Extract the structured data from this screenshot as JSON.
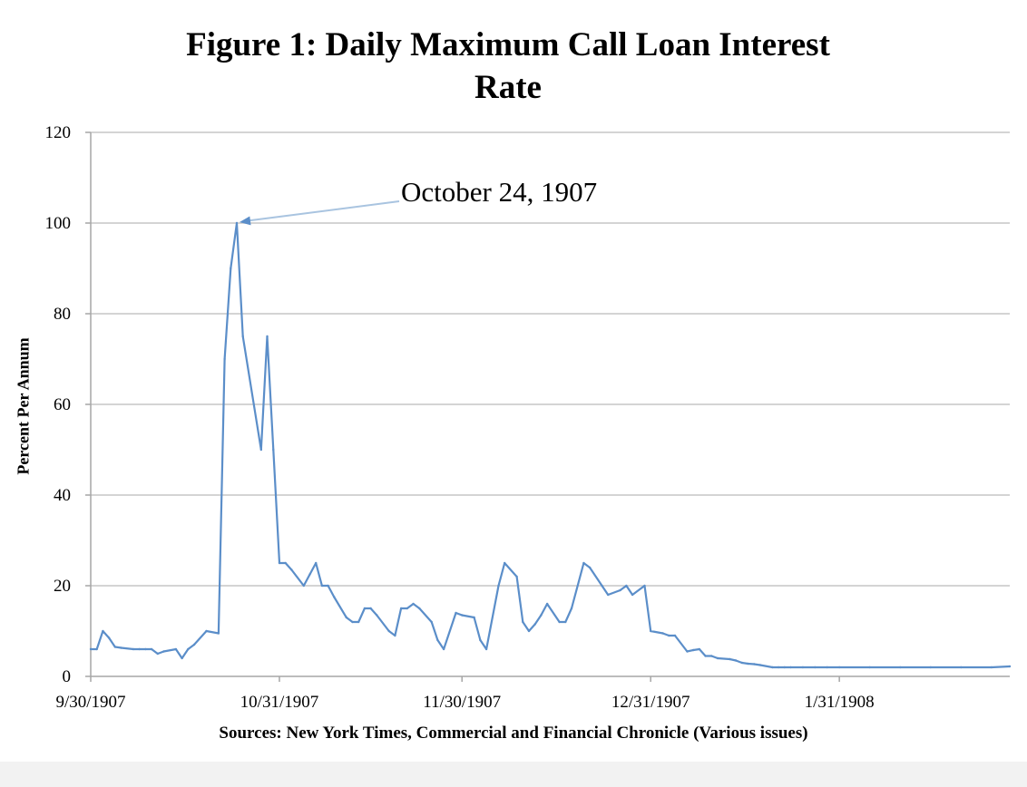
{
  "chart_data": {
    "type": "line",
    "title_line1": "Figure 1: Daily Maximum Call Loan Interest",
    "title_line2": "Rate",
    "ylabel": "Percent Per Annum",
    "xlabel": "",
    "source": "Sources: New York Times, Commercial and Financial Chronicle (Various issues)",
    "ylim": [
      0,
      120
    ],
    "yticks": [
      0,
      20,
      40,
      60,
      80,
      100,
      120
    ],
    "xlim": [
      "1907-09-30",
      "1908-02-28"
    ],
    "xticks": [
      {
        "date": "1907-09-30",
        "label": "9/30/1907"
      },
      {
        "date": "1907-10-31",
        "label": "10/31/1907"
      },
      {
        "date": "1907-11-30",
        "label": "11/30/1907"
      },
      {
        "date": "1907-12-31",
        "label": "12/31/1907"
      },
      {
        "date": "1908-01-31",
        "label": "1/31/1908"
      }
    ],
    "grid": true,
    "line_color": "#5b8ec9",
    "annotation": {
      "text": "October 24, 1907",
      "x": "1907-10-24",
      "y": 100
    },
    "series": [
      {
        "x": [
          "1907-09-30",
          "1907-10-01",
          "1907-10-02",
          "1907-10-03",
          "1907-10-04",
          "1907-10-05",
          "1907-10-07",
          "1907-10-08",
          "1907-10-09",
          "1907-10-10",
          "1907-10-11",
          "1907-10-12",
          "1907-10-14",
          "1907-10-15",
          "1907-10-16",
          "1907-10-17",
          "1907-10-19",
          "1907-10-21",
          "1907-10-22",
          "1907-10-23",
          "1907-10-24",
          "1907-10-25",
          "1907-10-28",
          "1907-10-29",
          "1907-10-30",
          "1907-10-31",
          "1907-11-01",
          "1907-11-02",
          "1907-11-04",
          "1907-11-05",
          "1907-11-06",
          "1907-11-07",
          "1907-11-08",
          "1907-11-09",
          "1907-11-11",
          "1907-11-12",
          "1907-11-13",
          "1907-11-14",
          "1907-11-15",
          "1907-11-16",
          "1907-11-18",
          "1907-11-19",
          "1907-11-20",
          "1907-11-21",
          "1907-11-22",
          "1907-11-23",
          "1907-11-25",
          "1907-11-26",
          "1907-11-27",
          "1907-11-29",
          "1907-11-30",
          "1907-12-02",
          "1907-12-03",
          "1907-12-04",
          "1907-12-06",
          "1907-12-07",
          "1907-12-09",
          "1907-12-10",
          "1907-12-11",
          "1907-12-12",
          "1907-12-13",
          "1907-12-14",
          "1907-12-16",
          "1907-12-17",
          "1907-12-18",
          "1907-12-20",
          "1907-12-21",
          "1907-12-23",
          "1907-12-24",
          "1907-12-26",
          "1907-12-27",
          "1907-12-28",
          "1907-12-30",
          "1907-12-31",
          "1908-01-02",
          "1908-01-03",
          "1908-01-04",
          "1908-01-06",
          "1908-01-07",
          "1908-01-08",
          "1908-01-09",
          "1908-01-10",
          "1908-01-11",
          "1908-01-13",
          "1908-01-14",
          "1908-01-15",
          "1908-01-16",
          "1908-01-17",
          "1908-01-18",
          "1908-01-20",
          "1908-01-21",
          "1908-01-22",
          "1908-01-23",
          "1908-01-25",
          "1908-01-27",
          "1908-01-29",
          "1908-01-31",
          "1908-02-05",
          "1908-02-10",
          "1908-02-15",
          "1908-02-20",
          "1908-02-25",
          "1908-02-28"
        ],
        "y": [
          6,
          6,
          10,
          8.5,
          6.5,
          6.3,
          6,
          6,
          6,
          6,
          5,
          5.5,
          6,
          4,
          6,
          7,
          10,
          9.5,
          70,
          90,
          100,
          75,
          50,
          75,
          50,
          25,
          25,
          23.5,
          20,
          22.5,
          25,
          20,
          20,
          17.5,
          13,
          12,
          12,
          15,
          15,
          13.5,
          10,
          9,
          15,
          15,
          16,
          15,
          12,
          8,
          6,
          14,
          13.5,
          13,
          8,
          6,
          20,
          25,
          22,
          12,
          10,
          11.5,
          13.5,
          16,
          12,
          12,
          15,
          25,
          24,
          20,
          18,
          19,
          20,
          18,
          20,
          10,
          9.5,
          9,
          9,
          5.5,
          5.8,
          6,
          4.5,
          4.5,
          4,
          3.8,
          3.5,
          3,
          2.8,
          2.7,
          2.5,
          2,
          2,
          2,
          2,
          2,
          2,
          2,
          2,
          2,
          2,
          2,
          2,
          2,
          2.2
        ]
      }
    ]
  }
}
